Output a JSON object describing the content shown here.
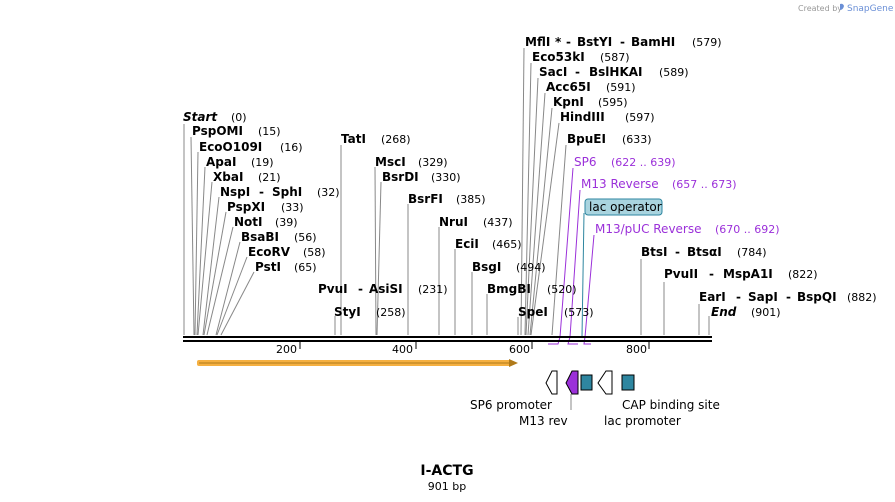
{
  "brand": {
    "created_by": "Created by",
    "app_name": "SnapGene"
  },
  "map": {
    "title": "I-ACTG",
    "subtitle": "901 bp",
    "ruler_ticks": [
      "200",
      "400",
      "600",
      "800"
    ]
  },
  "enzymes": [
    {
      "name": "Start",
      "pos": "(0)"
    },
    {
      "name": "PspOMI",
      "pos": "(15)"
    },
    {
      "name": "EcoO109I",
      "pos": "(16)"
    },
    {
      "name": "ApaI",
      "pos": "(19)"
    },
    {
      "name": "XbaI",
      "pos": "(21)"
    },
    {
      "name": "NspI",
      "sep": "-",
      "name2": "SphI",
      "pos": "(32)"
    },
    {
      "name": "PspXI",
      "pos": "(33)"
    },
    {
      "name": "NotI",
      "pos": "(39)"
    },
    {
      "name": "BsaBI",
      "pos": "(56)"
    },
    {
      "name": "EcoRV",
      "pos": "(58)"
    },
    {
      "name": "PstI",
      "pos": "(65)"
    },
    {
      "name": "PvuI",
      "sep": "-",
      "name2": "AsiSI",
      "pos": "(231)"
    },
    {
      "name": "StyI",
      "pos": "(258)"
    },
    {
      "name": "TatI",
      "pos": "(268)"
    },
    {
      "name": "MscI",
      "pos": "(329)"
    },
    {
      "name": "BsrDI",
      "pos": "(330)"
    },
    {
      "name": "BsrFI",
      "pos": "(385)"
    },
    {
      "name": "NruI",
      "pos": "(437)"
    },
    {
      "name": "EciI",
      "pos": "(465)"
    },
    {
      "name": "BsgI",
      "pos": "(494)"
    },
    {
      "name": "BmgBI",
      "pos": "(520)"
    },
    {
      "name": "SpeI",
      "pos": "(573)"
    },
    {
      "name": "MflI",
      "star": "*",
      "sep": "-",
      "name2": "BstYI",
      "sep2": "-",
      "name3": "BamHI",
      "pos": "(579)"
    },
    {
      "name": "Eco53kI",
      "pos": "(587)"
    },
    {
      "name": "SacI",
      "sep": "-",
      "name2": "BslHKAI",
      "pos": "(589)"
    },
    {
      "name": "Acc65I",
      "pos": "(591)"
    },
    {
      "name": "KpnI",
      "pos": "(595)"
    },
    {
      "name": "HindIII",
      "pos": "(597)"
    },
    {
      "name": "BpuEI",
      "pos": "(633)"
    },
    {
      "name": "BtsI",
      "sep": "-",
      "name2": "BtsαI",
      "pos": "(784)"
    },
    {
      "name": "PvuII",
      "sep": "-",
      "name2": "MspA1I",
      "pos": "(822)"
    },
    {
      "name": "EarI",
      "sep": "-",
      "name2": "SapI",
      "sep2": "-",
      "name3": "BspQI",
      "pos": "(882)"
    },
    {
      "name": "End",
      "pos": "(901)"
    }
  ],
  "primers": [
    {
      "name": "SP6",
      "range": "(622 .. 639)"
    },
    {
      "name": "M13 Reverse",
      "range": "(657 .. 673)"
    },
    {
      "name": "M13/pUC Reverse",
      "range": "(670 .. 692)"
    }
  ],
  "features": {
    "lac_operator": "lac operator",
    "sp6_promoter": "SP6 promoter",
    "m13_rev": "M13 rev",
    "lac_promoter": "lac promoter",
    "cap_site": "CAP binding site"
  },
  "colors": {
    "orf_arrow": "#f5b041",
    "primer": "#9b30d9",
    "operator": "#2e86a0",
    "operator_label_bg": "#a9d4df"
  }
}
